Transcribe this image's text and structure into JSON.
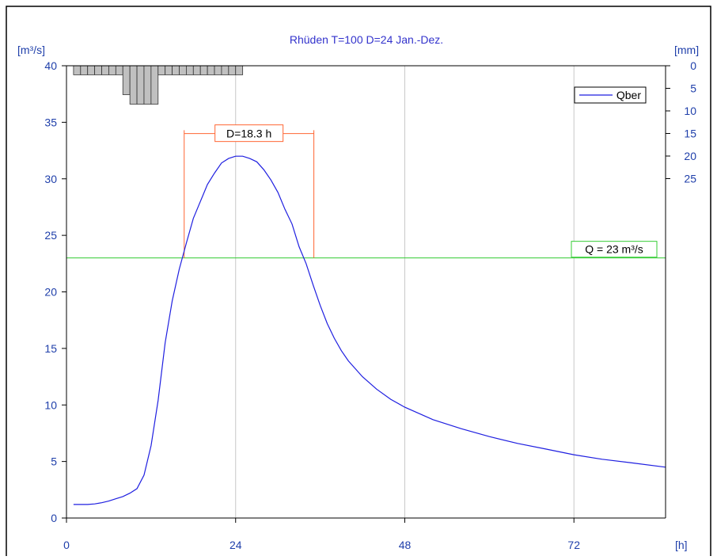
{
  "chart_data": {
    "type": "line",
    "title": "Rhüden T=100 D=24 Jan.-Dez.",
    "xlabel": "[h]",
    "ylabel_left": "[m³/s]",
    "ylabel_right": "[mm]",
    "xlim": [
      0,
      85
    ],
    "ylim": [
      0,
      40
    ],
    "ylim_right": [
      0,
      100
    ],
    "xticks": [
      0,
      24,
      48,
      72
    ],
    "yticks": [
      0,
      5,
      10,
      15,
      20,
      25,
      30,
      35,
      40
    ],
    "yticks_right": [
      0,
      5,
      10,
      15,
      20,
      25
    ],
    "grid": "vertical",
    "legend": {
      "position": "top-right",
      "entries": [
        "Qber"
      ]
    },
    "series": [
      {
        "name": "Qber",
        "color": "#1f1fe0",
        "x": [
          1,
          2,
          3,
          4,
          5,
          6,
          7,
          8,
          9,
          10,
          11,
          12,
          13,
          14,
          15,
          16,
          17,
          18,
          19,
          20,
          21,
          22,
          23,
          24,
          25,
          26,
          27,
          28,
          29,
          30,
          31,
          32,
          33,
          34,
          35,
          36,
          37,
          38,
          39,
          40,
          42,
          44,
          46,
          48,
          52,
          56,
          60,
          64,
          68,
          72,
          76,
          80,
          85
        ],
        "y": [
          1.2,
          1.2,
          1.2,
          1.25,
          1.35,
          1.5,
          1.7,
          1.9,
          2.2,
          2.6,
          3.8,
          6.4,
          10.4,
          15.5,
          19.2,
          22.0,
          24.3,
          26.5,
          28.0,
          29.5,
          30.5,
          31.4,
          31.8,
          32.0,
          32.0,
          31.8,
          31.5,
          30.8,
          29.9,
          28.8,
          27.3,
          26.0,
          24.0,
          22.5,
          20.6,
          18.8,
          17.2,
          15.9,
          14.8,
          13.9,
          12.5,
          11.4,
          10.5,
          9.8,
          8.7,
          7.9,
          7.2,
          6.6,
          6.1,
          5.6,
          5.2,
          4.9,
          4.5
        ]
      }
    ],
    "rainfall": {
      "unit": "mm",
      "color": "#c0c0c0",
      "bars": [
        {
          "x0": 1,
          "x1": 2,
          "value": 2
        },
        {
          "x0": 2,
          "x1": 3,
          "value": 2
        },
        {
          "x0": 3,
          "x1": 4,
          "value": 2
        },
        {
          "x0": 4,
          "x1": 5,
          "value": 2
        },
        {
          "x0": 5,
          "x1": 6,
          "value": 2
        },
        {
          "x0": 6,
          "x1": 7,
          "value": 2
        },
        {
          "x0": 7,
          "x1": 8,
          "value": 2
        },
        {
          "x0": 8,
          "x1": 9,
          "value": 6.4
        },
        {
          "x0": 9,
          "x1": 10,
          "value": 8.5
        },
        {
          "x0": 10,
          "x1": 11,
          "value": 8.5
        },
        {
          "x0": 11,
          "x1": 12,
          "value": 8.5
        },
        {
          "x0": 12,
          "x1": 13,
          "value": 8.5
        },
        {
          "x0": 13,
          "x1": 14,
          "value": 2
        },
        {
          "x0": 14,
          "x1": 15,
          "value": 2
        },
        {
          "x0": 15,
          "x1": 16,
          "value": 2
        },
        {
          "x0": 16,
          "x1": 17,
          "value": 2
        },
        {
          "x0": 17,
          "x1": 18,
          "value": 2
        },
        {
          "x0": 18,
          "x1": 19,
          "value": 2
        },
        {
          "x0": 19,
          "x1": 20,
          "value": 2
        },
        {
          "x0": 20,
          "x1": 21,
          "value": 2
        },
        {
          "x0": 21,
          "x1": 22,
          "value": 2
        },
        {
          "x0": 22,
          "x1": 23,
          "value": 2
        },
        {
          "x0": 23,
          "x1": 24,
          "value": 2
        },
        {
          "x0": 24,
          "x1": 25,
          "value": 2
        }
      ]
    },
    "threshold": {
      "value": 23,
      "label": "Q = 23 m³/s",
      "color": "#33cc33"
    },
    "duration": {
      "x_start": 16.7,
      "x_end": 35.1,
      "y": 34,
      "label": "D=18.3 h",
      "color": "#ff6633"
    }
  }
}
